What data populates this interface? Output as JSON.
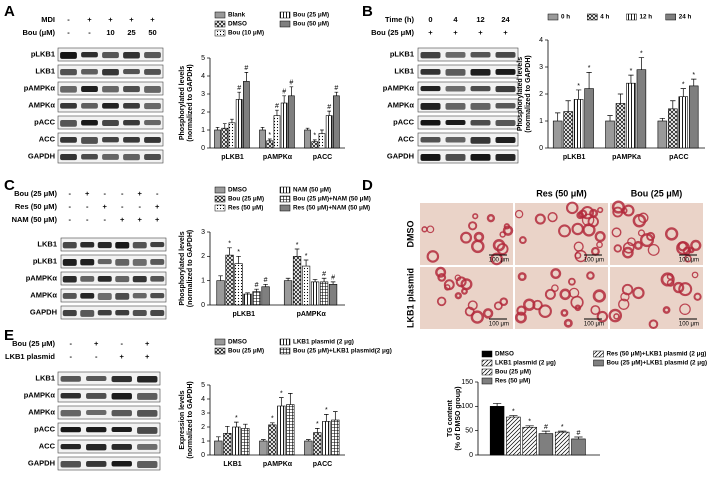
{
  "panels": [
    "A",
    "B",
    "C",
    "D",
    "E"
  ],
  "blots": [
    {
      "header": [
        {
          "label": "MDI",
          "lanes": [
            "-",
            "+",
            "+",
            "+",
            "+"
          ]
        },
        {
          "label": "Bou (μM)",
          "lanes": [
            "-",
            "-",
            "10",
            "25",
            "50"
          ]
        }
      ],
      "rows": [
        "pLKB1",
        "LKB1",
        "pAMPKα",
        "AMPKα",
        "pACC",
        "ACC",
        "GAPDH"
      ]
    },
    {
      "header": [
        {
          "label": "Time (h)",
          "lanes": [
            "0",
            "4",
            "12",
            "24"
          ]
        },
        {
          "label": "Bou (25 μM)",
          "lanes": [
            "+",
            "+",
            "+",
            "+"
          ]
        }
      ],
      "rows": [
        "pLKB1",
        "LKB1",
        "pAMPKα",
        "AMPKα",
        "pACC",
        "ACC",
        "GAPDH"
      ]
    },
    {
      "header": [
        {
          "label": "Bou (25 μM)",
          "lanes": [
            "-",
            "+",
            "-",
            "-",
            "+",
            "-"
          ]
        },
        {
          "label": "Res (50 μM)",
          "lanes": [
            "-",
            "-",
            "+",
            "-",
            "-",
            "+"
          ]
        },
        {
          "label": "NAM (50 μM)",
          "lanes": [
            "-",
            "-",
            "-",
            "+",
            "+",
            "+"
          ]
        }
      ],
      "rows": [
        "LKB1",
        "pLKB1",
        "pAMPKα",
        "AMPKα",
        "GAPDH"
      ]
    },
    {
      "header": [
        {
          "label": "Bou (25 μM)",
          "lanes": [
            "-",
            "+",
            "-",
            "+"
          ]
        },
        {
          "label": "LKB1 plasmid",
          "lanes": [
            "-",
            "-",
            "+",
            "+"
          ]
        }
      ],
      "rows": [
        "LKB1",
        "pAMPKα",
        "AMPKα",
        "pACC",
        "ACC",
        "GAPDH"
      ]
    }
  ],
  "micrographs": {
    "columns": [
      null,
      "Res (50  μM)",
      "Bou (25  μM)"
    ],
    "rows": [
      "DMSO",
      "LKB1 plasmid"
    ],
    "scale_bars": [
      "100 μm",
      "100 μm",
      "100 μm",
      "100 μm",
      "100 μm",
      "100 μm"
    ]
  },
  "chart_data": [
    {
      "type": "bar",
      "ylabel": [
        "Phosphorylated levels",
        "(normalized to GAPDH)"
      ],
      "categories": [
        "pLKB1",
        "pAMPKα",
        "pACC"
      ],
      "ylim": [
        0,
        5
      ],
      "yticks": [
        0,
        1,
        2,
        3,
        4,
        5
      ],
      "legend_rows": 3,
      "series": [
        {
          "name": "Blank",
          "color": "#9a9a9a",
          "values": [
            1.0,
            1.0,
            1.0
          ],
          "errors": [
            0.15,
            0.15,
            0.1
          ],
          "markers": [
            null,
            null,
            null
          ]
        },
        {
          "name": "DMSO",
          "color": "#ffffff",
          "pattern": "cross",
          "values": [
            1.1,
            0.4,
            0.35
          ],
          "errors": [
            0.25,
            0.1,
            0.1
          ],
          "markers": [
            null,
            "*",
            "*"
          ]
        },
        {
          "name": "Bou (10 μM)",
          "color": "#ffffff",
          "pattern": "dots",
          "values": [
            1.4,
            1.8,
            0.8
          ],
          "errors": [
            0.2,
            0.3,
            0.2
          ],
          "markers": [
            null,
            "#",
            null
          ]
        },
        {
          "name": "Bou (25 μM)",
          "color": "#ffffff",
          "pattern": "vstripes",
          "values": [
            2.7,
            2.5,
            1.8
          ],
          "errors": [
            0.4,
            0.4,
            0.25
          ],
          "markers": [
            "#",
            "#",
            "#"
          ]
        },
        {
          "name": "Bou (50 μM)",
          "color": "#7f7f7f",
          "values": [
            3.7,
            2.9,
            2.9
          ],
          "errors": [
            0.5,
            0.5,
            0.2
          ],
          "markers": [
            "#",
            "#",
            "#"
          ]
        }
      ]
    },
    {
      "type": "bar",
      "ylabel": [
        "Phosphorylated levels",
        "(normalized to GAPDH)"
      ],
      "categories": [
        "pLKB1",
        "pAMPKa",
        "pACC"
      ],
      "ylim": [
        0,
        4
      ],
      "yticks": [
        0,
        1,
        2,
        3,
        4
      ],
      "legend_rows": 1,
      "series": [
        {
          "name": "0 h",
          "color": "#9a9a9a",
          "values": [
            1.0,
            1.0,
            1.0
          ],
          "errors": [
            0.3,
            0.2,
            0.1
          ],
          "markers": [
            null,
            null,
            null
          ]
        },
        {
          "name": "4 h",
          "color": "#ffffff",
          "pattern": "cross",
          "values": [
            1.35,
            1.65,
            1.45
          ],
          "errors": [
            0.4,
            0.35,
            0.3
          ],
          "markers": [
            null,
            null,
            null
          ]
        },
        {
          "name": "12 h",
          "color": "#ffffff",
          "pattern": "vstripes",
          "values": [
            1.8,
            2.4,
            1.9
          ],
          "errors": [
            0.35,
            0.3,
            0.3
          ],
          "markers": [
            "*",
            "*",
            "*"
          ]
        },
        {
          "name": "24 h",
          "color": "#7f7f7f",
          "values": [
            2.2,
            2.9,
            2.3
          ],
          "errors": [
            0.6,
            0.45,
            0.25
          ],
          "markers": [
            "*",
            "*",
            "*"
          ]
        }
      ]
    },
    {
      "type": "bar",
      "ylabel": [
        "Phosphorylated levels",
        "(normalized to GAPDH)"
      ],
      "categories": [
        "pLKB1",
        "pAMPKα"
      ],
      "ylim": [
        0,
        3
      ],
      "yticks": [
        0,
        1,
        2,
        3
      ],
      "legend_rows": 3,
      "series": [
        {
          "name": "DMSO",
          "color": "#9a9a9a",
          "values": [
            1.0,
            1.0
          ],
          "errors": [
            0.2,
            0.1
          ],
          "markers": [
            null,
            null
          ]
        },
        {
          "name": "Bou (25 μM)",
          "color": "#ffffff",
          "pattern": "cross",
          "values": [
            2.05,
            2.0
          ],
          "errors": [
            0.3,
            0.3
          ],
          "markers": [
            "*",
            "*"
          ]
        },
        {
          "name": "Res (50 μM)",
          "color": "#ffffff",
          "pattern": "dots",
          "values": [
            1.7,
            1.6
          ],
          "errors": [
            0.3,
            0.25
          ],
          "markers": [
            "*",
            "*"
          ]
        },
        {
          "name": "NAM (50 μM)",
          "color": "#ffffff",
          "pattern": "vstripes",
          "values": [
            0.45,
            0.95
          ],
          "errors": [
            0.05,
            0.1
          ],
          "markers": [
            null,
            null
          ]
        },
        {
          "name": "Bou (25 μM)+NAM (50 μM)",
          "color": "#ffffff",
          "pattern": "grid",
          "values": [
            0.55,
            0.95
          ],
          "errors": [
            0.1,
            0.15
          ],
          "markers": [
            "#",
            "#"
          ]
        },
        {
          "name": "Res (50 μM)+NAM (50 μM)",
          "color": "#7f7f7f",
          "values": [
            0.75,
            0.85
          ],
          "errors": [
            0.1,
            0.1
          ],
          "markers": [
            "#",
            "#"
          ]
        }
      ]
    },
    {
      "type": "bar",
      "ylabel": [
        "Expression levels",
        "(normalized to GAPDH)"
      ],
      "categories": [
        "LKB1",
        "pAMPKα",
        "pACC"
      ],
      "ylim": [
        0,
        5
      ],
      "yticks": [
        0,
        1,
        2,
        3,
        4,
        5
      ],
      "legend_rows": 2,
      "series": [
        {
          "name": "DMSO",
          "color": "#9a9a9a",
          "values": [
            1.0,
            1.0,
            1.0
          ],
          "errors": [
            0.3,
            0.1,
            0.1
          ],
          "markers": [
            null,
            null,
            null
          ]
        },
        {
          "name": "Bou (25 μM)",
          "color": "#ffffff",
          "pattern": "cross",
          "values": [
            1.55,
            2.15,
            1.6
          ],
          "errors": [
            0.5,
            0.15,
            0.3
          ],
          "markers": [
            null,
            "*",
            "*"
          ]
        },
        {
          "name": "LKB1 plasmid (2 μg)",
          "color": "#ffffff",
          "pattern": "vstripes",
          "values": [
            2.0,
            3.5,
            2.4
          ],
          "errors": [
            0.35,
            0.6,
            0.5
          ],
          "markers": [
            "*",
            "*",
            "*"
          ]
        },
        {
          "name": "Bou (25 μM)+LKB1 plasmid(2 μg)",
          "color": "#ffffff",
          "pattern": "grid",
          "values": [
            1.9,
            3.6,
            2.5
          ],
          "errors": [
            0.3,
            0.8,
            0.6
          ],
          "markers": [
            null,
            null,
            null
          ]
        }
      ]
    },
    {
      "type": "bar",
      "ylabel": [
        "TG  content",
        "(% of DMSO group)"
      ],
      "ylim": [
        0,
        150
      ],
      "yticks": [
        0,
        50,
        100,
        150
      ],
      "legend_rows": 4,
      "series": [
        {
          "name": "DMSO",
          "color": "#000000",
          "values": [
            100
          ],
          "errors": [
            6
          ],
          "markers": [
            null
          ]
        },
        {
          "name": "LKB1 plasmid (2 μg)",
          "color": "#ffffff",
          "pattern": "hatch",
          "values": [
            78
          ],
          "errors": [
            3
          ],
          "markers": [
            "*"
          ]
        },
        {
          "name": "Bou (25 μM)",
          "color": "#ffffff",
          "pattern": "hatch",
          "values": [
            57
          ],
          "errors": [
            3
          ],
          "markers": [
            "*"
          ]
        },
        {
          "name": "Res (50 μM)",
          "color": "#7f7f7f",
          "values": [
            44
          ],
          "errors": [
            5
          ],
          "markers": [
            "#"
          ]
        },
        {
          "name": "Res (50 μM)+LKB1 plasmid (2 μg)",
          "color": "#ffffff",
          "pattern": "hatch",
          "values": [
            47
          ],
          "errors": [
            2
          ],
          "markers": [
            "*"
          ]
        },
        {
          "name": "Bou (25 μM)+LKB1 plasmid (2 μg)",
          "color": "#7f7f7f",
          "values": [
            33
          ],
          "errors": [
            4
          ],
          "markers": [
            "#"
          ]
        }
      ]
    }
  ]
}
